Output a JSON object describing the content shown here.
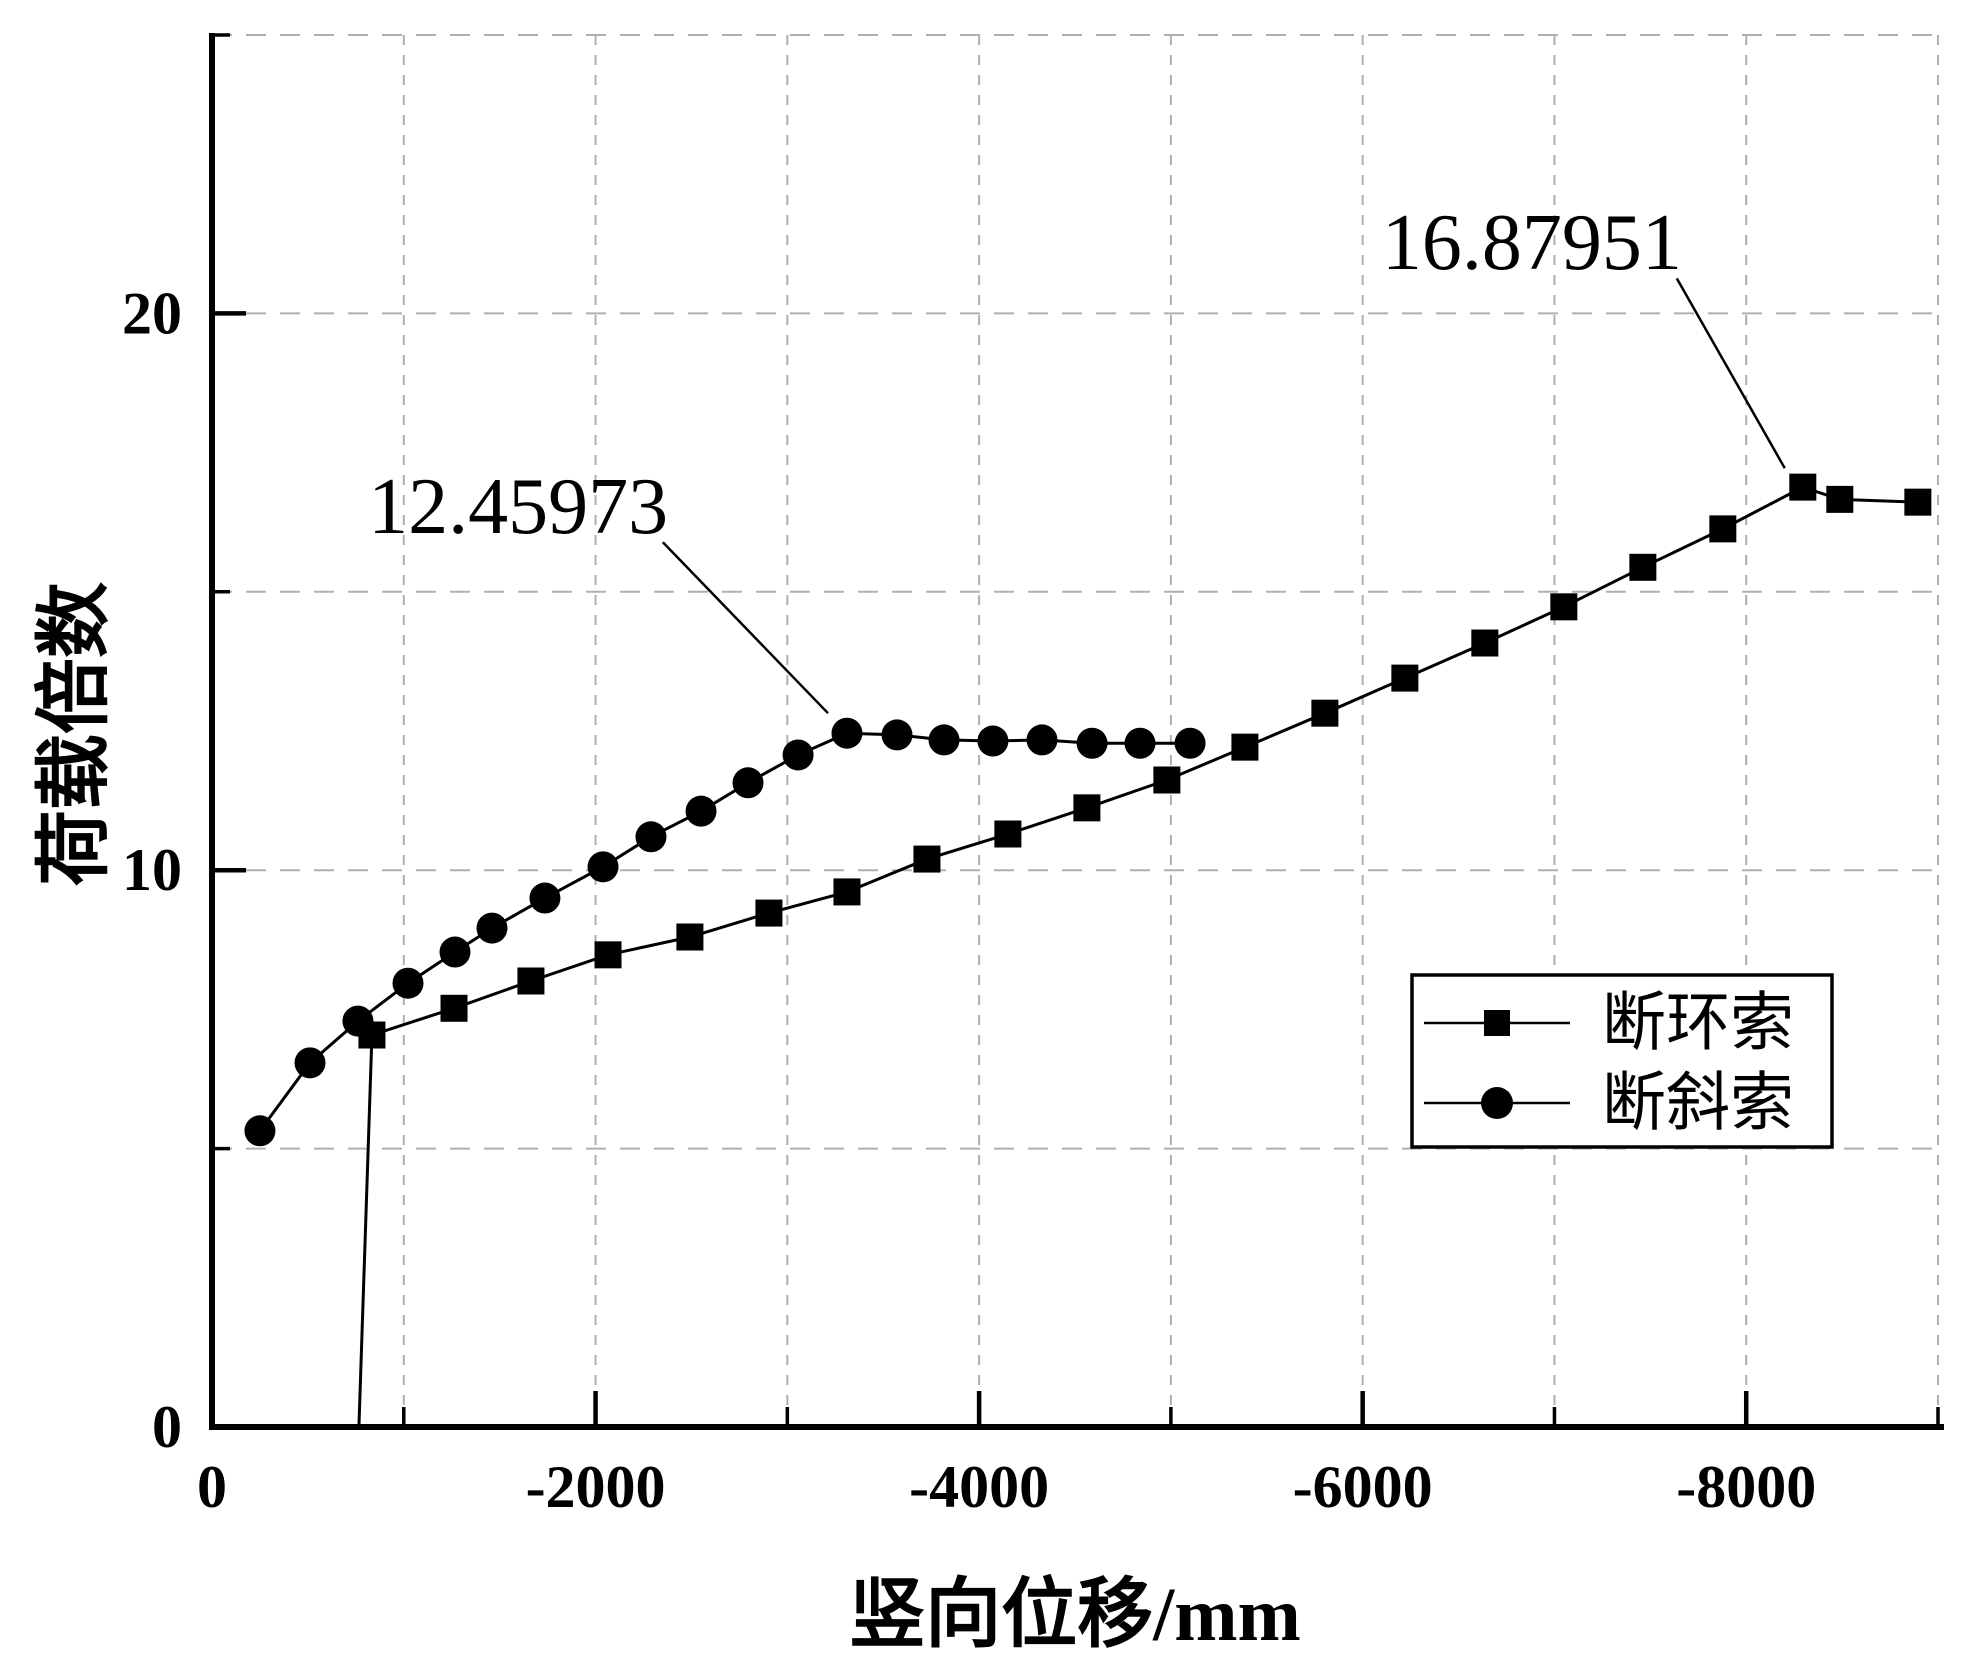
{
  "chart_data": {
    "type": "line",
    "title": "",
    "xlabel": "竖向位移/mm",
    "ylabel": "荷载倍数",
    "xlim": [
      0,
      -9000
    ],
    "ylim": [
      0,
      25
    ],
    "x_axis_reversed": true,
    "x_ticks_major": [
      0,
      -2000,
      -4000,
      -6000,
      -8000
    ],
    "x_tick_labels": [
      "0",
      "-2000",
      "-4000",
      "-6000",
      "-8000"
    ],
    "x_ticks_minor": [
      -1000,
      -3000,
      -5000,
      -7000,
      -9000
    ],
    "y_ticks_major": [
      0,
      10,
      20
    ],
    "y_tick_labels": [
      "0",
      "10",
      "20"
    ],
    "y_ticks_minor": [
      5,
      15,
      25
    ],
    "grid": "dashed gridlines every 1000 mm (vertical) and every 5 units (horizontal)",
    "legend_position": "inside lower right",
    "series": [
      {
        "name": "断环索",
        "marker": "square",
        "color": "#000000",
        "points": [
          [
            -766,
            0
          ],
          [
            -834,
            7.04
          ],
          [
            -1262,
            7.52
          ],
          [
            -1663,
            8.01
          ],
          [
            -2065,
            8.48
          ],
          [
            -2492,
            8.8
          ],
          [
            -2904,
            9.23
          ],
          [
            -3311,
            9.61
          ],
          [
            -3728,
            10.2
          ],
          [
            -4150,
            10.65
          ],
          [
            -4562,
            11.12
          ],
          [
            -4979,
            11.62
          ],
          [
            -5386,
            12.21
          ],
          [
            -5803,
            12.82
          ],
          [
            -6220,
            13.45
          ],
          [
            -6637,
            14.08
          ],
          [
            -7049,
            14.73
          ],
          [
            -7461,
            15.44
          ],
          [
            -7878,
            16.13
          ],
          [
            -8295,
            16.88
          ],
          [
            -8488,
            16.66
          ],
          [
            -8895,
            16.61
          ]
        ]
      },
      {
        "name": "断斜索",
        "marker": "circle",
        "color": "#000000",
        "points": [
          [
            -250,
            5.32
          ],
          [
            -511,
            6.54
          ],
          [
            -761,
            7.29
          ],
          [
            -1022,
            7.97
          ],
          [
            -1267,
            8.53
          ],
          [
            -1460,
            8.96
          ],
          [
            -1736,
            9.5
          ],
          [
            -2039,
            10.06
          ],
          [
            -2289,
            10.6
          ],
          [
            -2550,
            11.06
          ],
          [
            -2795,
            11.57
          ],
          [
            -3056,
            12.07
          ],
          [
            -3311,
            12.46
          ],
          [
            -3572,
            12.43
          ],
          [
            -3817,
            12.34
          ],
          [
            -4072,
            12.32
          ],
          [
            -4328,
            12.34
          ],
          [
            -4589,
            12.28
          ],
          [
            -4839,
            12.28
          ],
          [
            -5100,
            12.28
          ]
        ]
      }
    ],
    "annotations": [
      {
        "text": "12.45973",
        "points_to_series": "断斜索",
        "peak_value": 12.45973,
        "text_at": [
          -1596,
          16.52
        ],
        "leader_from": [
          -2351,
          15.89
        ],
        "leader_to": [
          -3212,
          12.82
        ]
      },
      {
        "text": "16.87951",
        "points_to_series": "断环索",
        "peak_value": 16.87951,
        "text_at": [
          -6882,
          21.26
        ],
        "leader_from": [
          -7638,
          20.63
        ],
        "leader_to": [
          -8201,
          17.22
        ]
      }
    ]
  },
  "colors": {
    "foreground": "#000000",
    "grid": "#b0b0b0",
    "background": "#ffffff",
    "legend_border": "#000000"
  }
}
